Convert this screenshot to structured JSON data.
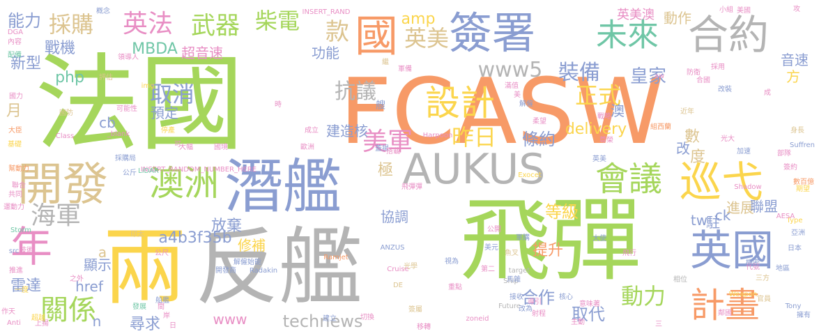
{
  "palette": {
    "green": "#a5d65b",
    "orange": "#f79a67",
    "blue": "#8a9dd1",
    "gray": "#b4b4b4",
    "yellow": "#fbd54c",
    "pink": "#e88ec4",
    "teal": "#6fc6a6",
    "tan": "#dcc490"
  },
  "words": [
    {
      "text": "法國",
      "color": "green"
    },
    {
      "text": "FCASW",
      "color": "orange"
    },
    {
      "text": "飛彈",
      "color": "green"
    },
    {
      "text": "反艦",
      "color": "gray"
    },
    {
      "text": "兩",
      "color": "yellow"
    },
    {
      "text": "潛艦",
      "color": "blue"
    },
    {
      "text": "AUKUS",
      "color": "gray"
    },
    {
      "text": "開發",
      "color": "tan"
    },
    {
      "text": "英國",
      "color": "blue"
    },
    {
      "text": "巡弋",
      "color": "yellow"
    },
    {
      "text": "簽署",
      "color": "blue"
    },
    {
      "text": "合約",
      "color": "gray"
    },
    {
      "text": "國",
      "color": "orange"
    },
    {
      "text": "未來",
      "color": "teal"
    },
    {
      "text": "設計",
      "color": "yellow"
    },
    {
      "text": "會議",
      "color": "green"
    },
    {
      "text": "澳洲",
      "color": "green"
    },
    {
      "text": "英法",
      "color": "pink"
    },
    {
      "text": "武器",
      "color": "green"
    },
    {
      "text": "柴電",
      "color": "green"
    },
    {
      "text": "年",
      "color": "pink"
    },
    {
      "text": "計畫",
      "color": "orange"
    },
    {
      "text": "美軍",
      "color": "pink"
    },
    {
      "text": "款",
      "color": "tan"
    },
    {
      "text": "採購",
      "color": "tan"
    },
    {
      "text": "英美",
      "color": "tan"
    },
    {
      "text": "海軍",
      "color": "gray"
    },
    {
      "text": "關係",
      "color": "green"
    },
    {
      "text": "www5",
      "color": "gray"
    },
    {
      "text": "抗議",
      "color": "gray"
    },
    {
      "text": "昨日",
      "color": "yellow"
    },
    {
      "text": "取消",
      "color": "blue"
    },
    {
      "text": "MBDA",
      "color": "teal"
    },
    {
      "text": "delivery",
      "color": "yellow"
    },
    {
      "text": "正式",
      "color": "yellow"
    },
    {
      "text": "動力",
      "color": "green"
    },
    {
      "text": "technews",
      "color": "gray"
    },
    {
      "text": "條約",
      "color": "blue"
    },
    {
      "text": "合作",
      "color": "blue"
    },
    {
      "text": "裝備",
      "color": "blue"
    },
    {
      "text": "等級",
      "color": "yellow"
    },
    {
      "text": "取代",
      "color": "blue"
    },
    {
      "text": "皇家",
      "color": "blue"
    },
    {
      "text": "能力",
      "color": "blue"
    },
    {
      "text": "戰機",
      "color": "blue"
    },
    {
      "text": "新型",
      "color": "blue"
    },
    {
      "text": "功能",
      "color": "blue"
    },
    {
      "text": "預定",
      "color": "blue"
    },
    {
      "text": "php",
      "color": "teal"
    },
    {
      "text": "amp",
      "color": "yellow"
    },
    {
      "text": "月",
      "color": "tan"
    },
    {
      "text": "超音速",
      "color": "pink"
    },
    {
      "text": "a4b3f35b",
      "color": "blue"
    },
    {
      "text": "雷達",
      "color": "blue"
    },
    {
      "text": "放棄",
      "color": "blue"
    },
    {
      "text": "修補",
      "color": "yellow"
    },
    {
      "text": "提升",
      "color": "orange"
    },
    {
      "text": "協調",
      "color": "blue"
    },
    {
      "text": "www",
      "color": "pink"
    },
    {
      "text": "href",
      "color": "blue"
    },
    {
      "text": "尋求",
      "color": "blue"
    },
    {
      "text": "顯示",
      "color": "blue"
    },
    {
      "text": "cb",
      "color": "blue"
    },
    {
      "text": "tw",
      "color": "blue"
    },
    {
      "text": "ck",
      "color": "blue"
    },
    {
      "text": "駐",
      "color": "blue"
    },
    {
      "text": "澳",
      "color": "blue"
    },
    {
      "text": "方",
      "color": "yellow"
    },
    {
      "text": "數",
      "color": "tan"
    },
    {
      "text": "度",
      "color": "tan"
    },
    {
      "text": "改",
      "color": "blue"
    },
    {
      "text": "極",
      "color": "tan"
    },
    {
      "text": "進展",
      "color": "tan"
    },
    {
      "text": "建造核",
      "color": "blue"
    },
    {
      "text": "聯盟",
      "color": "blue"
    },
    {
      "text": "音速",
      "color": "blue"
    },
    {
      "text": "動作",
      "color": "tan"
    },
    {
      "text": "英美澳",
      "color": "pink"
    },
    {
      "text": "a",
      "color": "tan"
    },
    {
      "text": "n",
      "color": "blue"
    },
    {
      "text": "INSERT_RAND",
      "color": "pink"
    },
    {
      "text": "INSERT_RANDOM_NUMBER_HERE",
      "color": "pink"
    },
    {
      "text": "_blank",
      "color": "pink"
    },
    {
      "text": "LiDAR",
      "color": "teal"
    },
    {
      "text": "Harpoon",
      "color": "pink"
    },
    {
      "text": "Exocet",
      "color": "yellow"
    },
    {
      "text": "ANZUS",
      "color": "blue"
    },
    {
      "text": "Radakin",
      "color": "blue"
    },
    {
      "text": "Ramjet",
      "color": "orange"
    },
    {
      "text": "Cruise",
      "color": "pink"
    },
    {
      "text": "Ship",
      "color": "gray"
    },
    {
      "text": "target",
      "color": "gray"
    },
    {
      "text": "Future",
      "color": "gray"
    },
    {
      "text": "Weapon",
      "color": "yellow"
    },
    {
      "text": "Shadow",
      "color": "pink"
    },
    {
      "text": "Storm",
      "color": "teal"
    },
    {
      "text": "Suffren",
      "color": "blue"
    },
    {
      "text": "Tony",
      "color": "blue"
    },
    {
      "text": "Type",
      "color": "yellow"
    },
    {
      "text": "AESA",
      "color": "pink"
    },
    {
      "text": "Anti",
      "color": "pink"
    },
    {
      "text": "src",
      "color": "blue"
    },
    {
      "text": "Class",
      "color": "pink"
    },
    {
      "text": "DGA",
      "color": "pink"
    },
    {
      "text": "zoneid",
      "color": "pink"
    },
    {
      "text": "aw",
      "color": "pink"
    },
    {
      "text": "DE",
      "color": "tan"
    },
    {
      "text": "img",
      "color": "yellow"
    },
    {
      "text": "概念",
      "color": "blue"
    },
    {
      "text": "內容",
      "color": "pink"
    },
    {
      "text": "配備",
      "color": "teal"
    },
    {
      "text": "領導人",
      "color": "pink"
    },
    {
      "text": "評估",
      "color": "tan"
    },
    {
      "text": "國防",
      "color": "tan"
    },
    {
      "text": "可能性",
      "color": "pink"
    },
    {
      "text": "停產",
      "color": "yellow"
    },
    {
      "text": "時",
      "color": "pink"
    },
    {
      "text": "大臣",
      "color": "orange"
    },
    {
      "text": "基礎",
      "color": "yellow"
    },
    {
      "text": "採購局",
      "color": "blue"
    },
    {
      "text": "國境",
      "color": "pink"
    },
    {
      "text": "大幅",
      "color": "pink"
    },
    {
      "text": "成立",
      "color": "pink"
    },
    {
      "text": "歐洲",
      "color": "pink"
    },
    {
      "text": "蓋揚",
      "color": "blue"
    },
    {
      "text": "搭載",
      "color": "pink"
    },
    {
      "text": "艘",
      "color": "blue"
    },
    {
      "text": "公斤",
      "color": "blue"
    },
    {
      "text": "印太",
      "color": "tan"
    },
    {
      "text": "公尺",
      "color": "pink"
    },
    {
      "text": "飛彈彈",
      "color": "pink"
    },
    {
      "text": "開發商",
      "color": "blue"
    },
    {
      "text": "簽屬",
      "color": "tan"
    },
    {
      "text": "身長",
      "color": "tan"
    },
    {
      "text": "部隊",
      "color": "pink"
    },
    {
      "text": "戰略",
      "color": "pink"
    },
    {
      "text": "加速",
      "color": "blue"
    },
    {
      "text": "改裝",
      "color": "blue"
    },
    {
      "text": "近年",
      "color": "tan"
    },
    {
      "text": "美元",
      "color": "blue"
    },
    {
      "text": "光學",
      "color": "tan"
    },
    {
      "text": "重點",
      "color": "pink"
    },
    {
      "text": "建立",
      "color": "blue"
    },
    {
      "text": "移轉",
      "color": "pink"
    },
    {
      "text": "主動",
      "color": "pink"
    },
    {
      "text": "改為",
      "color": "blue"
    },
    {
      "text": "核心",
      "color": "blue"
    },
    {
      "text": "導引",
      "color": "pink"
    },
    {
      "text": "射程",
      "color": "pink"
    },
    {
      "text": "意味著",
      "color": "pink"
    },
    {
      "text": "鄰國",
      "color": "pink"
    },
    {
      "text": "數百億",
      "color": "orange"
    },
    {
      "text": "期望",
      "color": "yellow"
    },
    {
      "text": "組西蘭",
      "color": "orange"
    },
    {
      "text": "上揚",
      "color": "pink"
    },
    {
      "text": "船艦",
      "color": "blue"
    },
    {
      "text": "發展",
      "color": "teal"
    },
    {
      "text": "簽約",
      "color": "pink"
    },
    {
      "text": "一度",
      "color": "yellow"
    },
    {
      "text": "超越",
      "color": "yellow"
    },
    {
      "text": "擁有",
      "color": "blue"
    },
    {
      "text": "相位",
      "color": "gray"
    },
    {
      "text": "地區",
      "color": "blue"
    },
    {
      "text": "推進",
      "color": "pink"
    },
    {
      "text": "運動力",
      "color": "pink"
    },
    {
      "text": "幫動力",
      "color": "orange"
    },
    {
      "text": "繼",
      "color": "tan"
    },
    {
      "text": "軍備",
      "color": "pink"
    },
    {
      "text": "作天",
      "color": "pink"
    },
    {
      "text": "魚叉",
      "color": "tan"
    },
    {
      "text": "採用",
      "color": "pink"
    },
    {
      "text": "攻",
      "color": "pink"
    },
    {
      "text": "小組",
      "color": "pink"
    },
    {
      "text": "美國",
      "color": "pink"
    },
    {
      "text": "聯合",
      "color": "pink"
    },
    {
      "text": "國力",
      "color": "pink"
    },
    {
      "text": "共同",
      "color": "pink"
    },
    {
      "text": "技術",
      "color": "pink"
    },
    {
      "text": "第二",
      "color": "pink"
    },
    {
      "text": "公開",
      "color": "pink"
    },
    {
      "text": "代號",
      "color": "pink"
    },
    {
      "text": "防衛",
      "color": "pink"
    },
    {
      "text": "機密",
      "color": "blue"
    },
    {
      "text": "三方",
      "color": "tan"
    },
    {
      "text": "官員",
      "color": "tan"
    },
    {
      "text": "日本",
      "color": "blue"
    },
    {
      "text": "亞洲",
      "color": "blue"
    },
    {
      "text": "飛行",
      "color": "pink"
    },
    {
      "text": "大使",
      "color": "blue"
    },
    {
      "text": "英美",
      "color": "blue"
    },
    {
      "text": "馬雜",
      "color": "blue"
    },
    {
      "text": "接收",
      "color": "blue"
    },
    {
      "text": "軍購",
      "color": "blue"
    },
    {
      "text": "視為",
      "color": "blue"
    },
    {
      "text": "尊榮",
      "color": "pink"
    },
    {
      "text": "柔望",
      "color": "pink"
    },
    {
      "text": "滿值",
      "color": "pink"
    },
    {
      "text": "美",
      "color": "pink"
    },
    {
      "text": "解僱",
      "color": "blue"
    },
    {
      "text": "解僱始能",
      "color": "blue"
    },
    {
      "text": "之外",
      "color": "pink"
    },
    {
      "text": "切換",
      "color": "pink"
    },
    {
      "text": "光大",
      "color": "pink"
    },
    {
      "text": "合國",
      "color": "pink"
    },
    {
      "text": "岸",
      "color": "pink"
    },
    {
      "text": "可",
      "color": "pink"
    },
    {
      "text": "成",
      "color": "pink"
    },
    {
      "text": "三",
      "color": "pink"
    },
    {
      "text": "間",
      "color": "pink"
    },
    {
      "text": "日",
      "color": "pink"
    },
    {
      "text": "彈",
      "color": "pink"
    }
  ]
}
